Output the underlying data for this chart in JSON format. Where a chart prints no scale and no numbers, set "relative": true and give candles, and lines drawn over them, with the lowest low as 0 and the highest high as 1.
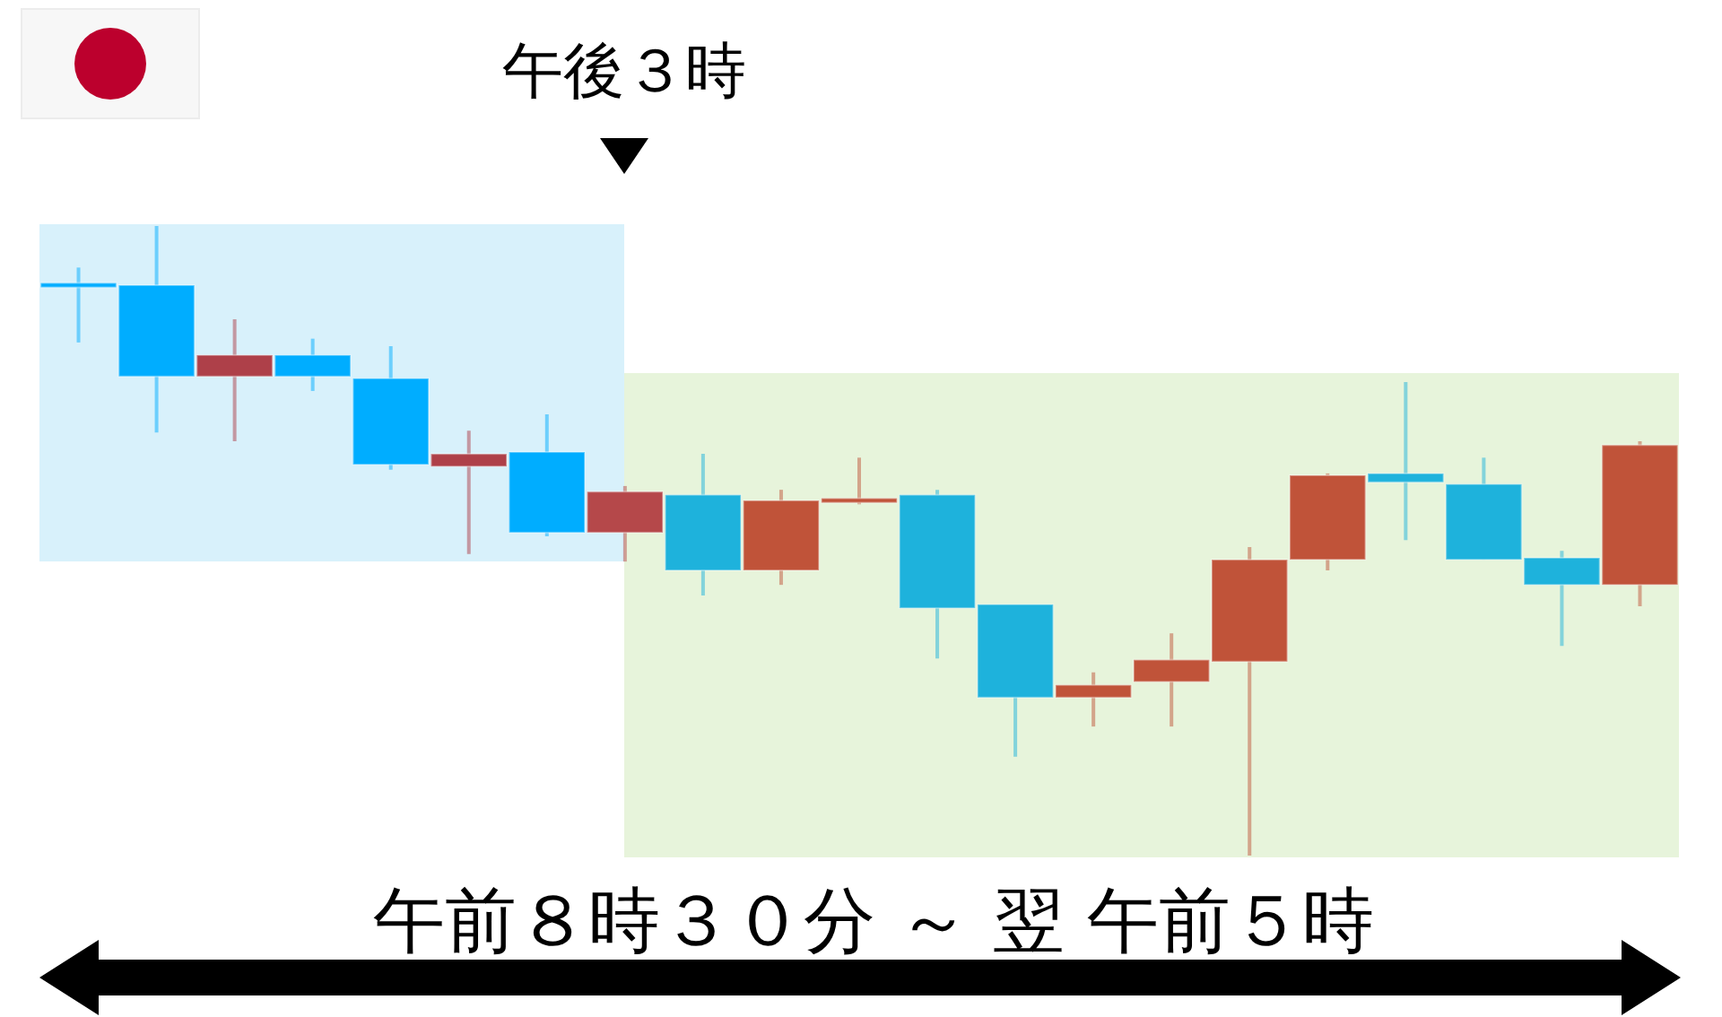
{
  "chart_data": {
    "type": "candlestick",
    "relative": true,
    "xlabel": "午前８時３０分 ～ 翌 午前５時",
    "annotations": [
      "午後３時"
    ],
    "categories": [
      null,
      null,
      null,
      null,
      null,
      null,
      null,
      null,
      null,
      null,
      null,
      null,
      null,
      null,
      null,
      null,
      null,
      null,
      null,
      null,
      null
    ],
    "ohlc": [
      [
        0.906,
        0.934,
        0.815,
        0.906
      ],
      [
        0.906,
        1.0,
        0.672,
        0.761
      ],
      [
        0.761,
        0.852,
        0.658,
        0.795
      ],
      [
        0.795,
        0.821,
        0.738,
        0.761
      ],
      [
        0.758,
        0.809,
        0.613,
        0.621
      ],
      [
        0.618,
        0.675,
        0.479,
        0.638
      ],
      [
        0.641,
        0.701,
        0.507,
        0.513
      ],
      [
        0.513,
        0.587,
        0.467,
        0.578
      ],
      [
        0.573,
        0.638,
        0.413,
        0.453
      ],
      [
        0.453,
        0.581,
        0.43,
        0.564
      ],
      [
        0.564,
        0.632,
        0.558,
        0.564
      ],
      [
        0.573,
        0.581,
        0.313,
        0.393
      ],
      [
        0.399,
        0.399,
        0.157,
        0.251
      ],
      [
        0.251,
        0.291,
        0.205,
        0.271
      ],
      [
        0.276,
        0.353,
        0.205,
        0.311
      ],
      [
        0.308,
        0.49,
        0.0,
        0.47
      ],
      [
        0.47,
        0.607,
        0.453,
        0.604
      ],
      [
        0.607,
        0.752,
        0.501,
        0.593
      ],
      [
        0.59,
        0.632,
        0.47,
        0.47
      ],
      [
        0.473,
        0.484,
        0.333,
        0.43
      ],
      [
        0.43,
        0.658,
        0.396,
        0.652
      ]
    ],
    "colors": [
      "#00adff",
      "#00adff",
      "#ae4049",
      "#00adff",
      "#00adff",
      "#ae4049",
      "#00adff",
      "#b5484a",
      "#1eb2dc",
      "#c05339",
      "#c05339",
      "#1eb2dc",
      "#1eb2dc",
      "#c05339",
      "#c05339",
      "#c05339",
      "#c05339",
      "#1eb2dc",
      "#1eb2dc",
      "#1eb2dc",
      "#c05339"
    ]
  }
}
